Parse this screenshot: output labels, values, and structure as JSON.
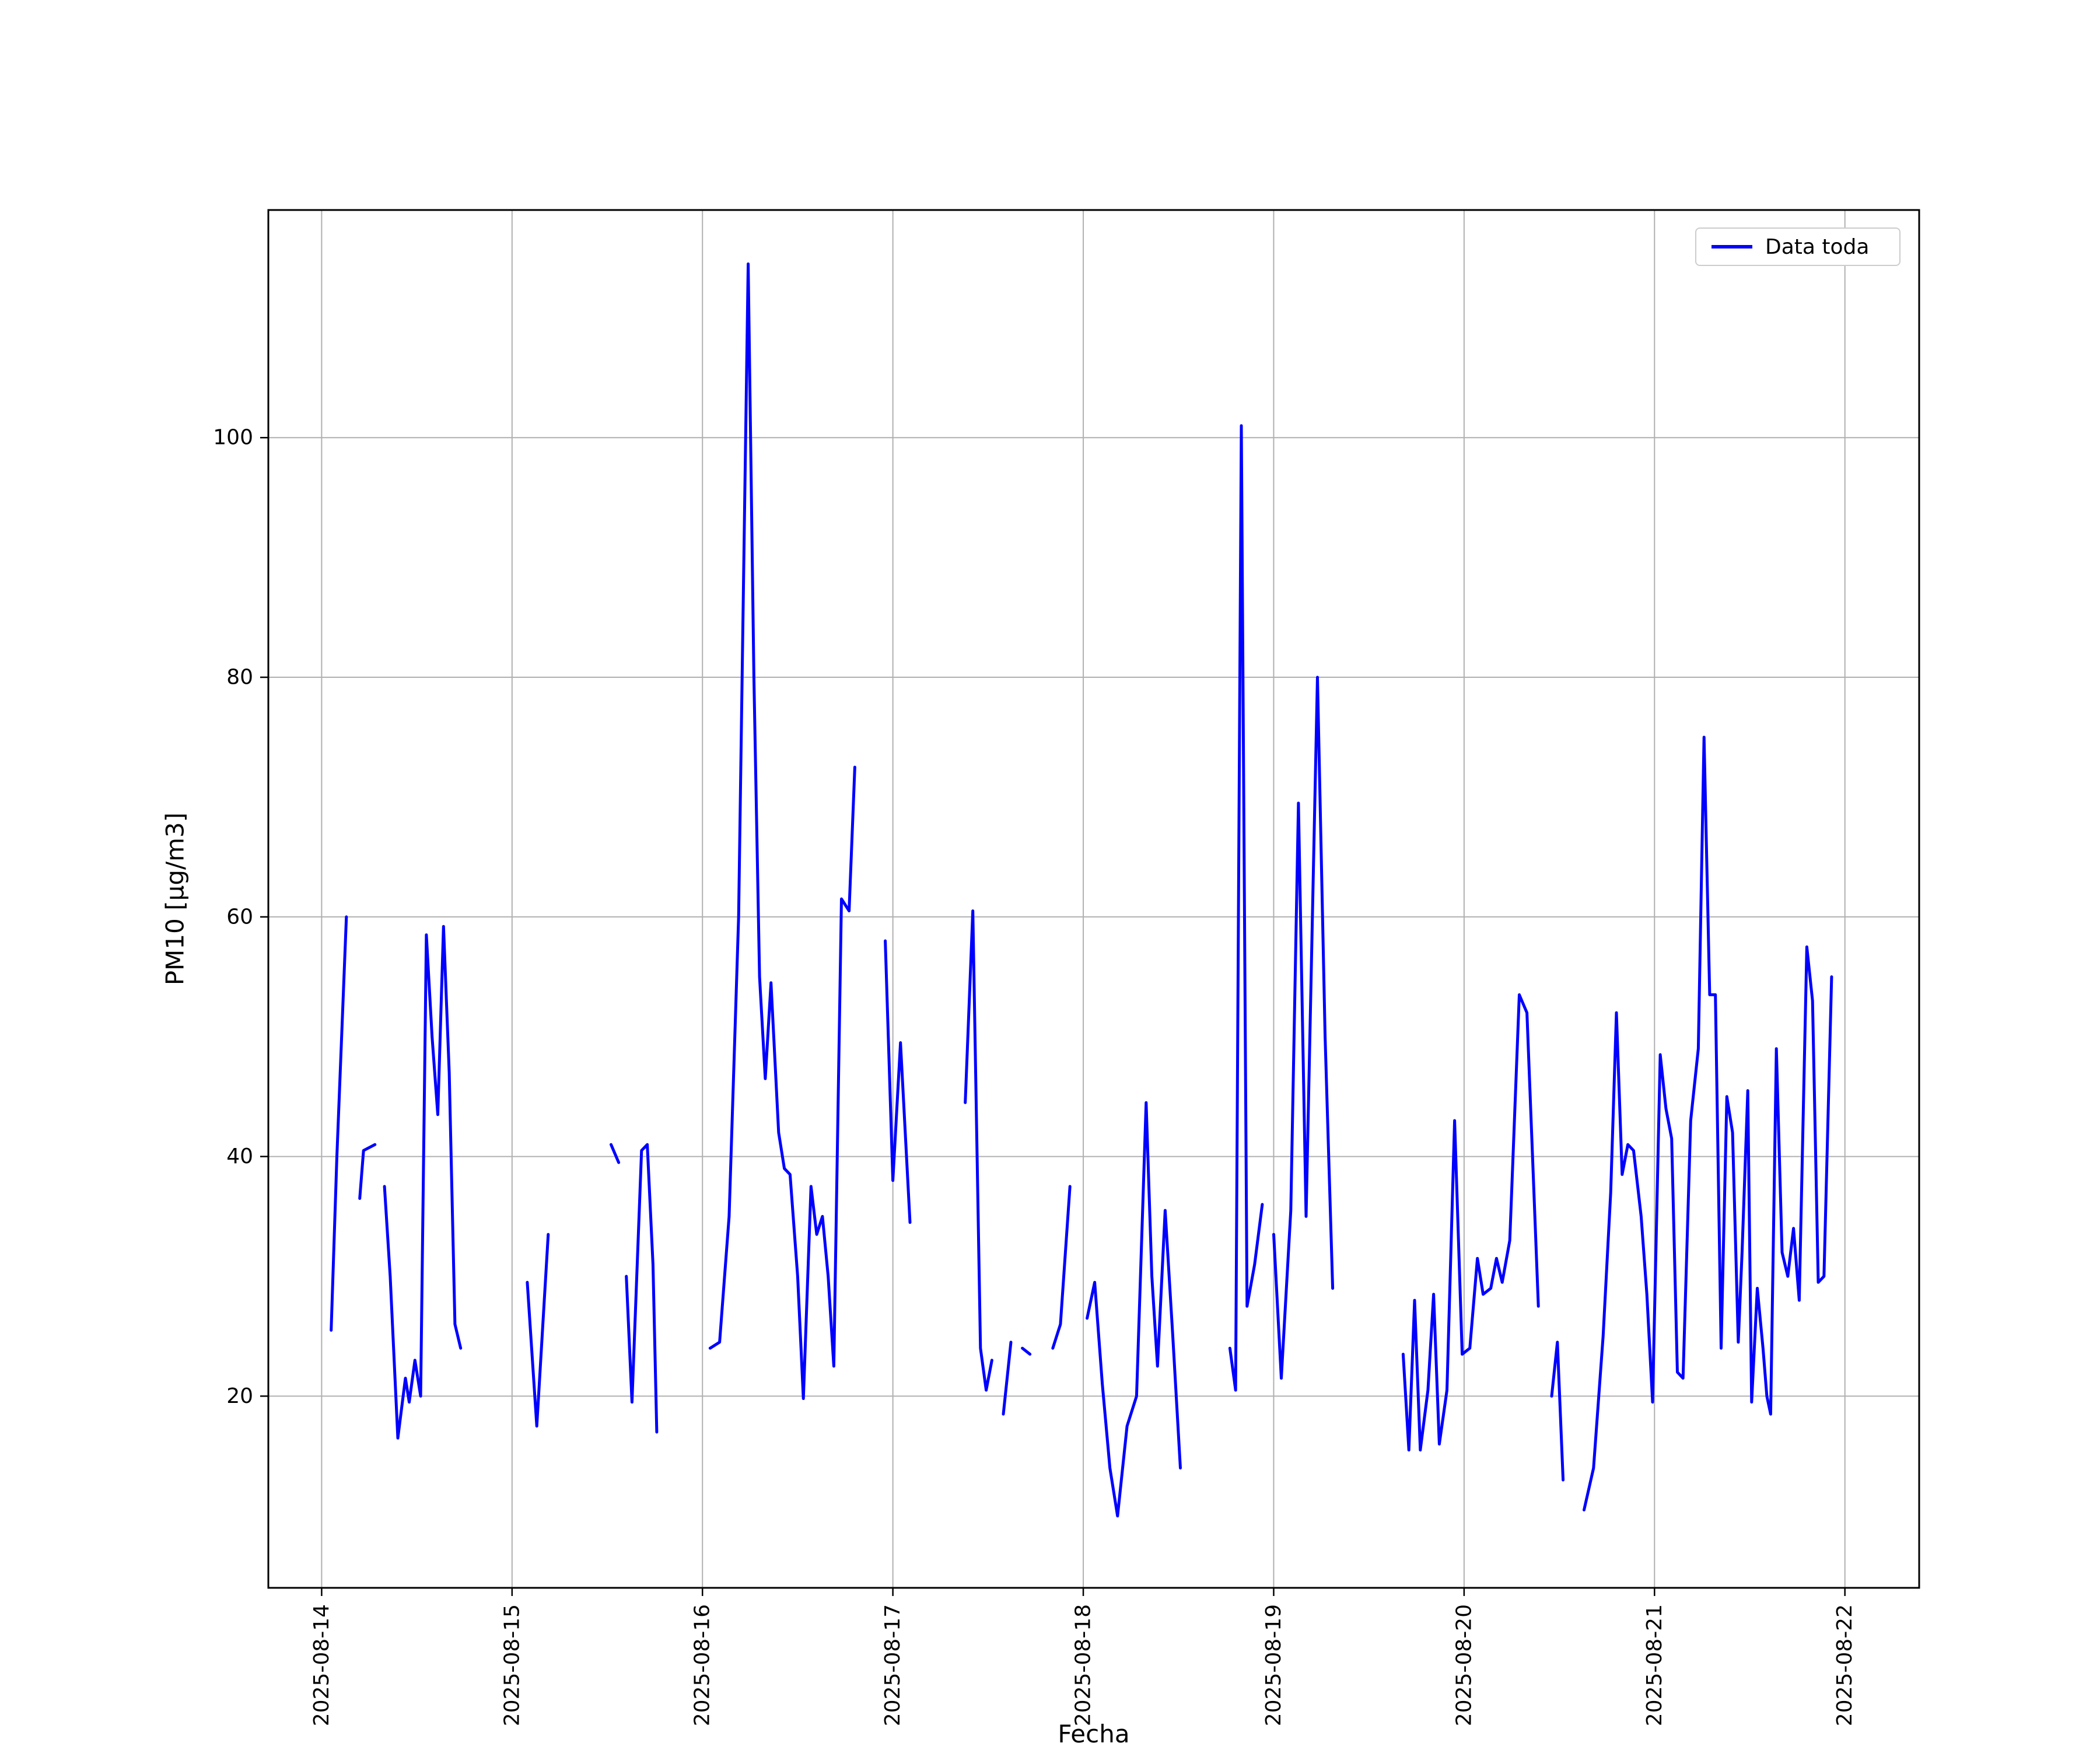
{
  "figure": {
    "background_color": "#ffffff",
    "frame_color": "#000000",
    "grid_color": "#b0b0b0"
  },
  "chart_data": {
    "type": "line",
    "title": "",
    "xlabel": "Fecha",
    "ylabel": "PM10 [μg/m3]",
    "grid": true,
    "legend": {
      "position": "upper right",
      "entries": [
        {
          "label": "Data toda",
          "color": "#0000ff"
        }
      ]
    },
    "x_unit": "days since 2025-08-14 00:00",
    "xlim_days": [
      -0.28,
      8.39
    ],
    "ylim": [
      4,
      119
    ],
    "y_ticks": [
      {
        "value": 20,
        "label": "20"
      },
      {
        "value": 40,
        "label": "40"
      },
      {
        "value": 60,
        "label": "60"
      },
      {
        "value": 80,
        "label": "80"
      },
      {
        "value": 100,
        "label": "100"
      }
    ],
    "x_ticks": [
      {
        "t": 0,
        "label": "2025-08-14"
      },
      {
        "t": 1,
        "label": "2025-08-15"
      },
      {
        "t": 2,
        "label": "2025-08-16"
      },
      {
        "t": 3,
        "label": "2025-08-17"
      },
      {
        "t": 4,
        "label": "2025-08-18"
      },
      {
        "t": 5,
        "label": "2025-08-19"
      },
      {
        "t": 6,
        "label": "2025-08-20"
      },
      {
        "t": 7,
        "label": "2025-08-21"
      },
      {
        "t": 8,
        "label": "2025-08-22"
      }
    ],
    "series": [
      {
        "name": "Data toda",
        "color": "#0000ff",
        "line_width": 5,
        "segments": [
          [
            [
              0.05,
              25.5
            ],
            [
              0.08,
              40.0
            ],
            [
              0.13,
              60.0
            ]
          ],
          [
            [
              0.2,
              36.5
            ],
            [
              0.22,
              40.5
            ],
            [
              0.28,
              41.0
            ]
          ],
          [
            [
              0.33,
              37.5
            ],
            [
              0.36,
              30.0
            ],
            [
              0.4,
              16.5
            ],
            [
              0.44,
              21.5
            ],
            [
              0.46,
              19.5
            ],
            [
              0.49,
              23.0
            ],
            [
              0.52,
              20.0
            ],
            [
              0.55,
              58.5
            ],
            [
              0.58,
              50.0
            ],
            [
              0.61,
              43.5
            ],
            [
              0.64,
              59.2
            ],
            [
              0.67,
              47.0
            ],
            [
              0.7,
              26.0
            ],
            [
              0.73,
              24.0
            ]
          ],
          [
            [
              1.08,
              29.5
            ],
            [
              1.13,
              17.5
            ],
            [
              1.19,
              33.5
            ]
          ],
          [
            [
              1.52,
              41.0
            ],
            [
              1.56,
              39.5
            ]
          ],
          [
            [
              1.6,
              30.0
            ],
            [
              1.63,
              19.5
            ],
            [
              1.68,
              40.5
            ],
            [
              1.71,
              41.0
            ],
            [
              1.74,
              31.0
            ],
            [
              1.76,
              17.0
            ]
          ],
          [
            [
              2.04,
              24.0
            ],
            [
              2.09,
              24.5
            ],
            [
              2.14,
              35.0
            ],
            [
              2.19,
              60.0
            ],
            [
              2.24,
              114.5
            ],
            [
              2.27,
              80.0
            ],
            [
              2.3,
              55.0
            ],
            [
              2.33,
              46.5
            ],
            [
              2.36,
              54.5
            ],
            [
              2.4,
              42.0
            ],
            [
              2.43,
              39.0
            ],
            [
              2.46,
              38.5
            ],
            [
              2.5,
              30.0
            ],
            [
              2.53,
              19.8
            ],
            [
              2.57,
              37.5
            ],
            [
              2.6,
              33.5
            ],
            [
              2.63,
              35.0
            ],
            [
              2.66,
              30.0
            ],
            [
              2.69,
              22.5
            ],
            [
              2.73,
              61.5
            ],
            [
              2.77,
              60.5
            ],
            [
              2.8,
              72.5
            ]
          ],
          [
            [
              2.96,
              58.0
            ],
            [
              3.0,
              38.0
            ],
            [
              3.04,
              49.5
            ],
            [
              3.09,
              34.5
            ]
          ],
          [
            [
              3.38,
              44.5
            ],
            [
              3.42,
              60.5
            ],
            [
              3.46,
              24.0
            ],
            [
              3.49,
              20.5
            ],
            [
              3.52,
              23.0
            ]
          ],
          [
            [
              3.58,
              18.5
            ],
            [
              3.62,
              24.5
            ]
          ],
          [
            [
              3.68,
              24.0
            ],
            [
              3.72,
              23.5
            ]
          ],
          [
            [
              3.84,
              24.0
            ],
            [
              3.88,
              26.0
            ],
            [
              3.93,
              37.5
            ]
          ],
          [
            [
              4.02,
              26.5
            ],
            [
              4.06,
              29.5
            ],
            [
              4.1,
              21.0
            ],
            [
              4.14,
              14.0
            ],
            [
              4.18,
              10.0
            ],
            [
              4.23,
              17.5
            ],
            [
              4.28,
              20.0
            ],
            [
              4.33,
              44.5
            ],
            [
              4.36,
              30.0
            ],
            [
              4.39,
              22.5
            ],
            [
              4.43,
              35.5
            ],
            [
              4.47,
              25.0
            ],
            [
              4.51,
              14.0
            ]
          ],
          [
            [
              4.77,
              24.0
            ],
            [
              4.8,
              20.5
            ],
            [
              4.83,
              101.0
            ],
            [
              4.86,
              27.5
            ],
            [
              4.9,
              31.0
            ],
            [
              4.94,
              36.0
            ]
          ],
          [
            [
              5.0,
              33.5
            ],
            [
              5.04,
              21.5
            ],
            [
              5.09,
              35.5
            ],
            [
              5.13,
              69.5
            ],
            [
              5.17,
              35.0
            ],
            [
              5.23,
              80.0
            ],
            [
              5.27,
              50.0
            ],
            [
              5.31,
              29.0
            ]
          ],
          [
            [
              5.68,
              23.5
            ],
            [
              5.71,
              15.5
            ],
            [
              5.74,
              28.0
            ],
            [
              5.77,
              15.5
            ],
            [
              5.81,
              20.5
            ],
            [
              5.84,
              28.5
            ],
            [
              5.87,
              16.0
            ],
            [
              5.91,
              20.5
            ],
            [
              5.95,
              43.0
            ],
            [
              5.99,
              23.5
            ],
            [
              6.03,
              24.0
            ],
            [
              6.07,
              31.5
            ],
            [
              6.1,
              28.5
            ],
            [
              6.14,
              29.0
            ],
            [
              6.17,
              31.5
            ],
            [
              6.2,
              29.5
            ],
            [
              6.24,
              33.0
            ],
            [
              6.29,
              53.5
            ],
            [
              6.33,
              52.0
            ],
            [
              6.39,
              27.5
            ]
          ],
          [
            [
              6.46,
              20.0
            ],
            [
              6.49,
              24.5
            ],
            [
              6.52,
              13.0
            ]
          ],
          [
            [
              6.63,
              10.5
            ],
            [
              6.68,
              14.0
            ],
            [
              6.73,
              25.0
            ],
            [
              6.77,
              37.0
            ],
            [
              6.8,
              52.0
            ],
            [
              6.83,
              38.5
            ],
            [
              6.86,
              41.0
            ],
            [
              6.89,
              40.5
            ],
            [
              6.93,
              35.0
            ],
            [
              6.96,
              28.5
            ],
            [
              6.99,
              19.5
            ],
            [
              7.03,
              48.5
            ],
            [
              7.06,
              44.0
            ],
            [
              7.09,
              41.5
            ],
            [
              7.12,
              22.0
            ],
            [
              7.15,
              21.5
            ],
            [
              7.19,
              43.0
            ],
            [
              7.23,
              49.0
            ],
            [
              7.26,
              75.0
            ],
            [
              7.29,
              53.5
            ],
            [
              7.32,
              53.5
            ],
            [
              7.35,
              24.0
            ],
            [
              7.38,
              45.0
            ],
            [
              7.41,
              42.0
            ],
            [
              7.44,
              24.5
            ],
            [
              7.46,
              32.0
            ],
            [
              7.49,
              45.5
            ],
            [
              7.51,
              19.5
            ],
            [
              7.54,
              29.0
            ],
            [
              7.57,
              24.0
            ],
            [
              7.59,
              20.0
            ],
            [
              7.61,
              18.5
            ],
            [
              7.64,
              49.0
            ],
            [
              7.67,
              32.0
            ],
            [
              7.7,
              30.0
            ],
            [
              7.73,
              34.0
            ],
            [
              7.76,
              28.0
            ],
            [
              7.8,
              57.5
            ],
            [
              7.83,
              53.0
            ],
            [
              7.86,
              29.5
            ],
            [
              7.89,
              30.0
            ],
            [
              7.93,
              55.0
            ]
          ]
        ]
      }
    ]
  }
}
